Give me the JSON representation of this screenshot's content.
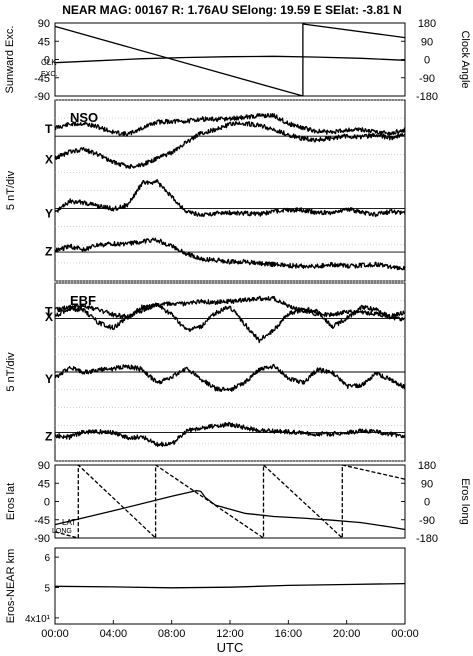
{
  "header": {
    "title": "NEAR MAG: 00167  R: 1.76AU  SElong:   19.59 E  SElat:  -3.81 N"
  },
  "chart_data": [
    {
      "type": "line",
      "panel": "sunward-excursion",
      "ylabel_left": "Sunward Exc.",
      "ylabel_right": "Clock Angle",
      "ylim_left": [
        -90,
        90
      ],
      "ylim_right": [
        -180,
        180
      ],
      "yticks_left": [
        "90",
        "45",
        "0",
        "-45",
        "-90"
      ],
      "yticks_right": [
        "180",
        "90",
        "0",
        "-90",
        "-180"
      ],
      "annotations": [
        "CLK",
        "EXC."
      ],
      "series": [
        {
          "name": "CLK",
          "axis": "right",
          "style": "solid",
          "x": [
            0,
            17,
            17,
            24
          ],
          "y": [
            163,
            -180,
            175,
            108
          ]
        },
        {
          "name": "EXC.",
          "axis": "left",
          "style": "solid",
          "x": [
            0,
            3,
            6,
            9,
            12,
            15,
            18,
            21,
            24
          ],
          "y": [
            -8,
            -3,
            2,
            5,
            7,
            8,
            6,
            3,
            -2
          ]
        }
      ]
    },
    {
      "type": "line",
      "panel": "NSO",
      "panel_label": "NSO",
      "ylabel": "5 nT/div",
      "series": [
        {
          "name": "T",
          "x": [
            0,
            1,
            2,
            3,
            4,
            5,
            6,
            7,
            8,
            9,
            10,
            11,
            12,
            13,
            14,
            15,
            16,
            17,
            18,
            19,
            20,
            21,
            22,
            23,
            24
          ],
          "y": [
            12.3,
            13.3,
            13.5,
            12.5,
            11.1,
            10.5,
            12.3,
            13.9,
            14.1,
            14.1,
            14.8,
            14.6,
            14.8,
            15.2,
            15.7,
            15.7,
            13.5,
            12.3,
            11.3,
            11.1,
            11.8,
            11.8,
            11.3,
            10.7,
            11.8
          ]
        },
        {
          "name": "X",
          "x": [
            0,
            1,
            2,
            3,
            4,
            5,
            6,
            7,
            8,
            9,
            10,
            11,
            12,
            13,
            14,
            15,
            16,
            17,
            18,
            19,
            20,
            21,
            22,
            23,
            24
          ],
          "y": [
            3.9,
            5.7,
            6.3,
            4.9,
            2.8,
            1.6,
            2.1,
            3.9,
            5.4,
            8.3,
            10.8,
            11.8,
            13.3,
            13.5,
            13.1,
            11.8,
            10.4,
            9.3,
            9.0,
            9.5,
            10.1,
            9.7,
            10.4,
            9.5,
            10.7
          ]
        },
        {
          "name": "Y",
          "x": [
            0,
            1,
            2,
            3,
            4,
            5,
            6,
            7,
            8,
            9,
            10,
            11,
            12,
            13,
            14,
            15,
            16,
            17,
            18,
            19,
            20,
            21,
            22,
            23,
            24
          ],
          "y": [
            -11.1,
            -7.9,
            -8.4,
            -9.3,
            -10.1,
            -9.0,
            -2.8,
            -2.6,
            -6.7,
            -10.8,
            -11.8,
            -11.3,
            -11.1,
            -11.3,
            -11.6,
            -10.7,
            -10.4,
            -10.4,
            -11.1,
            -11.1,
            -10.1,
            -11.1,
            -11.6,
            -10.8,
            -11.1
          ]
        },
        {
          "name": "Z",
          "x": [
            0,
            1,
            2,
            3,
            4,
            5,
            6,
            7,
            8,
            9,
            10,
            11,
            12,
            13,
            14,
            15,
            16,
            17,
            18,
            19,
            20,
            21,
            22,
            23,
            24
          ],
          "y": [
            -21.6,
            -20.4,
            -21.3,
            -20.1,
            -19.7,
            -19.8,
            -19.0,
            -18.7,
            -20.4,
            -22.4,
            -23.9,
            -24.2,
            -24.7,
            -24.7,
            -25.2,
            -25.4,
            -25.7,
            -25.9,
            -25.9,
            -25.4,
            -25.9,
            -25.7,
            -25.4,
            -26.1,
            -26.4
          ]
        }
      ]
    },
    {
      "type": "line",
      "panel": "EBF",
      "panel_label": "EBF",
      "ylabel": "5 nT/div",
      "series": [
        {
          "name": "T",
          "x": [
            0,
            1,
            2,
            3,
            4,
            5,
            6,
            7,
            8,
            9,
            10,
            11,
            12,
            13,
            14,
            15,
            16,
            17,
            18,
            19,
            20,
            21,
            22,
            23,
            24
          ],
          "y": [
            12.3,
            13.3,
            13.5,
            12.5,
            11.1,
            10.5,
            12.3,
            13.9,
            14.1,
            14.1,
            14.8,
            14.6,
            14.8,
            15.2,
            15.7,
            15.7,
            13.5,
            12.3,
            11.3,
            11.1,
            11.8,
            11.8,
            11.3,
            10.7,
            11.8
          ]
        },
        {
          "name": "X",
          "x": [
            0,
            1,
            2,
            3,
            4,
            5,
            6,
            7,
            8,
            9,
            10,
            11,
            12,
            13,
            14,
            15,
            16,
            17,
            18,
            19,
            20,
            21,
            22,
            23,
            24
          ],
          "y": [
            10.7,
            12.8,
            12.3,
            8.8,
            7.4,
            10.4,
            13.3,
            13.8,
            11.1,
            6.7,
            7.6,
            11.6,
            13.3,
            8.5,
            3.9,
            6.7,
            11.4,
            12.6,
            12.1,
            7.6,
            10.1,
            13.1,
            12.6,
            10.4,
            9.8
          ]
        },
        {
          "name": "Y",
          "x": [
            0,
            1,
            2,
            3,
            4,
            5,
            6,
            7,
            8,
            9,
            10,
            11,
            12,
            13,
            14,
            15,
            16,
            17,
            18,
            19,
            20,
            21,
            22,
            23,
            24
          ],
          "y": [
            -6.7,
            -3.7,
            -5.1,
            -4.4,
            -4.0,
            -3.4,
            -4.3,
            -8.1,
            -6.4,
            -4.0,
            -6.9,
            -9.7,
            -10.1,
            -7.9,
            -4.4,
            -3.4,
            -6.7,
            -8.1,
            -4.4,
            -5.1,
            -9.0,
            -8.8,
            -5.4,
            -7.1,
            -9.3
          ]
        },
        {
          "name": "Z",
          "x": [
            0,
            1,
            2,
            3,
            4,
            5,
            6,
            7,
            8,
            9,
            10,
            11,
            12,
            13,
            14,
            15,
            16,
            17,
            18,
            19,
            20,
            21,
            22,
            23,
            24
          ],
          "y": [
            -22.8,
            -23.3,
            -21.8,
            -21.8,
            -22.0,
            -23.5,
            -23.2,
            -25.3,
            -25.3,
            -21.6,
            -20.8,
            -20.1,
            -19.7,
            -20.6,
            -21.4,
            -21.6,
            -21.8,
            -22.1,
            -22.4,
            -22.4,
            -22.1,
            -21.6,
            -21.8,
            -22.4,
            -23.0
          ]
        }
      ]
    },
    {
      "type": "line",
      "panel": "eros-position",
      "ylabel_left": "Eros lat",
      "ylabel_right": "Eros long",
      "ylim_left": [
        -90,
        90
      ],
      "ylim_right": [
        -180,
        180
      ],
      "yticks_left": [
        "90",
        "45",
        "0",
        "-45",
        "-90"
      ],
      "yticks_right": [
        "180",
        "90",
        "0",
        "-90",
        "-180"
      ],
      "annotations": [
        "LAT",
        "LONG"
      ],
      "series": [
        {
          "name": "LAT",
          "axis": "left",
          "style": "solid",
          "x": [
            0,
            4,
            8,
            9.7,
            10,
            10.3,
            11,
            13,
            15,
            17,
            19,
            21,
            23,
            24
          ],
          "y": [
            -57,
            -23,
            13,
            27,
            25,
            10,
            -9,
            -29,
            -37,
            -41,
            -46,
            -52,
            -63,
            -69
          ]
        },
        {
          "name": "LONG",
          "axis": "right",
          "style": "dashed",
          "x": [
            0,
            1.6,
            1.6,
            6.9,
            6.9,
            14.3,
            14.3,
            19.7,
            19.7,
            24
          ],
          "y": [
            -150,
            -180,
            180,
            -180,
            180,
            -180,
            180,
            -180,
            180,
            110
          ]
        }
      ]
    },
    {
      "type": "line",
      "panel": "eros-near-distance",
      "ylabel": "Eros-NEAR km",
      "yticks": [
        "6",
        "5",
        "4x10¹"
      ],
      "ylim": [
        38,
        63
      ],
      "series": [
        {
          "name": "distance",
          "x": [
            0,
            4,
            8,
            12,
            16,
            20,
            24
          ],
          "y": [
            50.4,
            50.2,
            49.9,
            50.1,
            50.7,
            51.0,
            51.3
          ]
        }
      ]
    }
  ],
  "x_axis": {
    "label": "UTC",
    "ticks": [
      "00:00",
      "04:00",
      "08:00",
      "12:00",
      "16:00",
      "20:00",
      "00:00"
    ]
  }
}
